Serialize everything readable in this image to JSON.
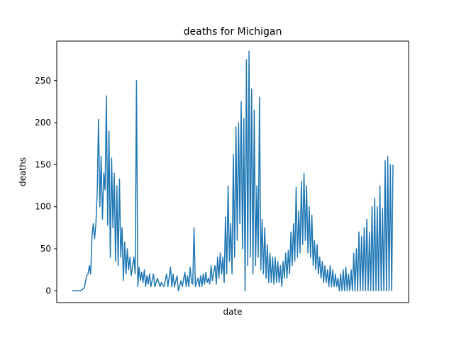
{
  "chart_data": {
    "type": "line",
    "title": "deaths for Michigan",
    "xlabel": "date",
    "ylabel": "deaths",
    "ylim": [
      -14,
      297
    ],
    "yticks": [
      0,
      50,
      100,
      150,
      200,
      250
    ],
    "xticks": [],
    "grid": false,
    "legend": "none",
    "series": [
      {
        "color": "#1f77b4",
        "keypoints": [
          [
            0,
            0
          ],
          [
            6,
            0
          ],
          [
            9,
            3
          ],
          [
            11,
            18
          ],
          [
            12,
            20
          ],
          [
            13,
            30
          ],
          [
            14,
            20
          ],
          [
            15,
            65
          ],
          [
            16,
            80
          ],
          [
            17,
            62
          ],
          [
            18,
            80
          ],
          [
            19,
            118
          ],
          [
            20,
            204
          ],
          [
            21,
            100
          ],
          [
            22,
            160
          ],
          [
            23,
            85
          ],
          [
            24,
            140
          ],
          [
            25,
            120
          ],
          [
            26,
            232
          ],
          [
            27,
            78
          ],
          [
            28,
            190
          ],
          [
            29,
            40
          ],
          [
            30,
            158
          ],
          [
            31,
            75
          ],
          [
            32,
            140
          ],
          [
            33,
            35
          ],
          [
            34,
            125
          ],
          [
            35,
            30
          ],
          [
            36,
            133
          ],
          [
            37,
            40
          ],
          [
            38,
            75
          ],
          [
            39,
            12
          ],
          [
            40,
            58
          ],
          [
            41,
            20
          ],
          [
            42,
            50
          ],
          [
            43,
            25
          ],
          [
            44,
            40
          ],
          [
            45,
            18
          ],
          [
            46,
            30
          ],
          [
            47,
            40
          ],
          [
            48,
            20
          ],
          [
            49,
            250
          ],
          [
            50,
            5
          ],
          [
            51,
            28
          ],
          [
            52,
            12
          ],
          [
            53,
            22
          ],
          [
            54,
            10
          ],
          [
            55,
            25
          ],
          [
            56,
            5
          ],
          [
            57,
            18
          ],
          [
            58,
            8
          ],
          [
            59,
            20
          ],
          [
            60,
            5
          ],
          [
            62,
            20
          ],
          [
            63,
            5
          ],
          [
            65,
            15
          ],
          [
            67,
            5
          ],
          [
            68,
            10
          ],
          [
            70,
            5
          ],
          [
            72,
            20
          ],
          [
            73,
            5
          ],
          [
            75,
            28
          ],
          [
            76,
            5
          ],
          [
            77,
            20
          ],
          [
            78,
            5
          ],
          [
            80,
            18
          ],
          [
            81,
            0
          ],
          [
            83,
            12
          ],
          [
            84,
            5
          ],
          [
            86,
            22
          ],
          [
            87,
            5
          ],
          [
            88,
            18
          ],
          [
            89,
            5
          ],
          [
            90,
            28
          ],
          [
            91,
            10
          ],
          [
            92,
            8
          ],
          [
            93,
            75
          ],
          [
            94,
            5
          ],
          [
            96,
            15
          ],
          [
            97,
            5
          ],
          [
            98,
            18
          ],
          [
            99,
            5
          ],
          [
            100,
            20
          ],
          [
            101,
            8
          ],
          [
            102,
            22
          ],
          [
            103,
            10
          ],
          [
            104,
            15
          ],
          [
            105,
            8
          ],
          [
            106,
            30
          ],
          [
            107,
            12
          ],
          [
            108,
            22
          ],
          [
            109,
            30
          ],
          [
            110,
            8
          ],
          [
            111,
            40
          ],
          [
            112,
            15
          ],
          [
            113,
            45
          ],
          [
            114,
            20
          ],
          [
            115,
            40
          ],
          [
            116,
            10
          ],
          [
            117,
            88
          ],
          [
            118,
            20
          ],
          [
            119,
            125
          ],
          [
            120,
            35
          ],
          [
            121,
            80
          ],
          [
            122,
            20
          ],
          [
            123,
            162
          ],
          [
            124,
            40
          ],
          [
            125,
            195
          ],
          [
            126,
            60
          ],
          [
            127,
            200
          ],
          [
            128,
            80
          ],
          [
            129,
            225
          ],
          [
            130,
            50
          ],
          [
            131,
            205
          ],
          [
            132,
            0
          ],
          [
            133,
            275
          ],
          [
            134,
            30
          ],
          [
            135,
            285
          ],
          [
            136,
            40
          ],
          [
            137,
            240
          ],
          [
            138,
            20
          ],
          [
            139,
            215
          ],
          [
            140,
            30
          ],
          [
            141,
            125
          ],
          [
            142,
            40
          ],
          [
            143,
            230
          ],
          [
            144,
            25
          ],
          [
            145,
            85
          ],
          [
            146,
            20
          ],
          [
            147,
            75
          ],
          [
            148,
            15
          ],
          [
            149,
            55
          ],
          [
            150,
            10
          ],
          [
            151,
            45
          ],
          [
            152,
            10
          ],
          [
            153,
            40
          ],
          [
            154,
            8
          ],
          [
            155,
            40
          ],
          [
            156,
            10
          ],
          [
            157,
            35
          ],
          [
            158,
            10
          ],
          [
            159,
            30
          ],
          [
            160,
            5
          ],
          [
            161,
            35
          ],
          [
            162,
            15
          ],
          [
            163,
            45
          ],
          [
            164,
            15
          ],
          [
            165,
            48
          ],
          [
            166,
            20
          ],
          [
            167,
            70
          ],
          [
            168,
            30
          ],
          [
            169,
            80
          ],
          [
            170,
            35
          ],
          [
            171,
            123
          ],
          [
            172,
            40
          ],
          [
            173,
            95
          ],
          [
            174,
            45
          ],
          [
            175,
            130
          ],
          [
            176,
            55
          ],
          [
            177,
            140
          ],
          [
            178,
            60
          ],
          [
            179,
            125
          ],
          [
            180,
            45
          ],
          [
            181,
            100
          ],
          [
            182,
            40
          ],
          [
            183,
            90
          ],
          [
            184,
            30
          ],
          [
            185,
            60
          ],
          [
            186,
            25
          ],
          [
            187,
            55
          ],
          [
            188,
            20
          ],
          [
            189,
            40
          ],
          [
            190,
            15
          ],
          [
            191,
            35
          ],
          [
            192,
            10
          ],
          [
            193,
            30
          ],
          [
            194,
            10
          ],
          [
            195,
            25
          ],
          [
            196,
            5
          ],
          [
            197,
            30
          ],
          [
            198,
            5
          ],
          [
            199,
            25
          ],
          [
            200,
            5
          ],
          [
            201,
            20
          ],
          [
            202,
            5
          ],
          [
            203,
            15
          ],
          [
            204,
            0
          ],
          [
            205,
            20
          ],
          [
            206,
            0
          ],
          [
            207,
            25
          ],
          [
            208,
            0
          ],
          [
            209,
            28
          ],
          [
            210,
            0
          ],
          [
            211,
            20
          ],
          [
            212,
            0
          ],
          [
            213,
            25
          ],
          [
            214,
            0
          ],
          [
            215,
            45
          ],
          [
            216,
            0
          ],
          [
            217,
            50
          ],
          [
            218,
            0
          ],
          [
            219,
            70
          ],
          [
            220,
            0
          ],
          [
            221,
            65
          ],
          [
            222,
            0
          ],
          [
            223,
            75
          ],
          [
            224,
            0
          ],
          [
            225,
            85
          ],
          [
            226,
            0
          ],
          [
            227,
            70
          ],
          [
            228,
            0
          ],
          [
            229,
            100
          ],
          [
            230,
            0
          ],
          [
            231,
            110
          ],
          [
            232,
            0
          ],
          [
            233,
            100
          ],
          [
            234,
            0
          ],
          [
            235,
            125
          ],
          [
            236,
            0
          ],
          [
            237,
            98
          ],
          [
            238,
            0
          ],
          [
            239,
            155
          ],
          [
            240,
            0
          ],
          [
            241,
            160
          ],
          [
            242,
            0
          ],
          [
            243,
            150
          ],
          [
            244,
            0
          ],
          [
            245,
            150
          ]
        ]
      }
    ]
  }
}
